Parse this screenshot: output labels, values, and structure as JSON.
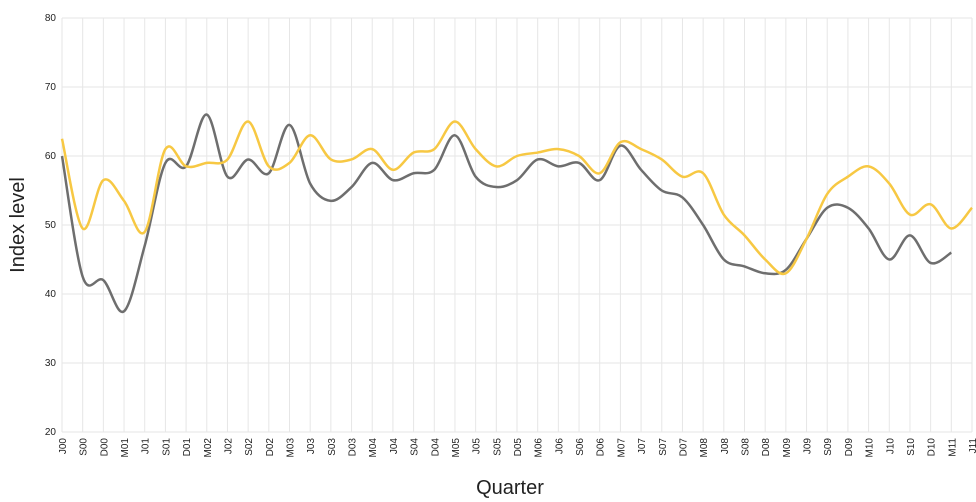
{
  "chart_data": {
    "type": "line",
    "y_label": "Index level",
    "x_label": "Quarter",
    "categories": [
      "J00",
      "S00",
      "D00",
      "M01",
      "J01",
      "S01",
      "D01",
      "M02",
      "J02",
      "S02",
      "D02",
      "M03",
      "J03",
      "S03",
      "D03",
      "M04",
      "J04",
      "S04",
      "D04",
      "M05",
      "J05",
      "S05",
      "D05",
      "M06",
      "J06",
      "S06",
      "D06",
      "M07",
      "J07",
      "S07",
      "D07",
      "M08",
      "J08",
      "S08",
      "D08",
      "M09",
      "J09",
      "S09",
      "D09",
      "M10",
      "J10",
      "S10",
      "D10",
      "M11",
      "J11"
    ],
    "series": [
      {
        "color": "#6e6e6e",
        "values": [
          60,
          42.5,
          42,
          37.5,
          47,
          59,
          58.5,
          66,
          57,
          59.5,
          57.5,
          64.5,
          56,
          53.5,
          55.5,
          59,
          56.5,
          57.5,
          58,
          63,
          57,
          55.5,
          56.5,
          59.5,
          58.5,
          59,
          56.5,
          61.5,
          58,
          55,
          54,
          50,
          45,
          44,
          43,
          43.5,
          48,
          52.5,
          52.5,
          49.5,
          45,
          48.5,
          44.5,
          46,
          null
        ]
      },
      {
        "color": "#f7c843",
        "values": [
          62.5,
          49.5,
          56.5,
          53.5,
          49,
          61,
          58.5,
          59,
          59.5,
          65,
          58.5,
          59,
          63,
          59.5,
          59.5,
          61,
          58,
          60.5,
          61,
          65,
          61,
          58.5,
          60,
          60.5,
          61,
          60,
          57.5,
          62,
          61,
          59.5,
          57,
          57.5,
          51.5,
          48.5,
          45,
          43,
          48,
          54.5,
          57,
          58.5,
          56,
          51.5,
          53,
          49.5,
          52.5
        ]
      }
    ],
    "ylim": [
      20,
      80
    ],
    "yticks": [
      20,
      30,
      40,
      50,
      60,
      70,
      80
    ],
    "grid": true
  }
}
